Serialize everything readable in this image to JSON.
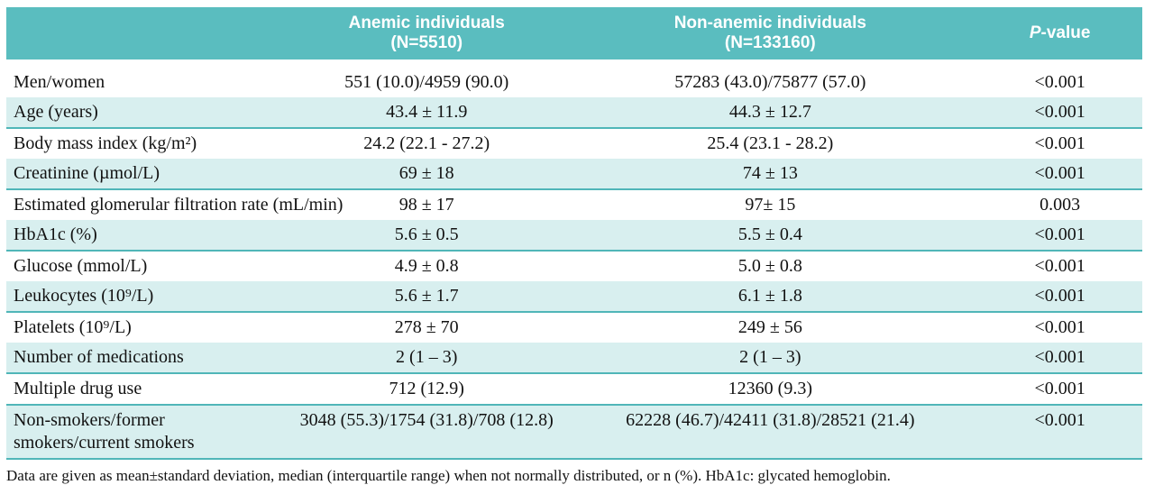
{
  "colors": {
    "header_bg": "#5abdbf",
    "row_shade": "#d8efef",
    "rule_line": "#50b6b8",
    "header_text": "#ffffff",
    "body_text": "#121212"
  },
  "table": {
    "header": {
      "col1": "",
      "anemic": "Anemic individuals\n(N=5510)",
      "non_anemic": "Non-anemic individuals\n(N=133160)",
      "p_italic": "P",
      "p_rest": "-value"
    },
    "rows": [
      {
        "label": "Men/women",
        "anemic": "551 (10.0)/4959 (90.0)",
        "non_anemic": "57283 (43.0)/75877 (57.0)",
        "p": "<0.001"
      },
      {
        "label": "Age (years)",
        "anemic": "43.4 ± 11.9",
        "non_anemic": "44.3 ± 12.7",
        "p": "<0.001"
      },
      {
        "label": "Body mass index (kg/m²)",
        "anemic": "24.2 (22.1 - 27.2)",
        "non_anemic": "25.4 (23.1 - 28.2)",
        "p": "<0.001"
      },
      {
        "label": "Creatinine (µmol/L)",
        "anemic": "69 ± 18",
        "non_anemic": "74 ± 13",
        "p": "<0.001"
      },
      {
        "label": "Estimated glomerular filtration rate (mL/min)",
        "anemic": "98 ± 17",
        "non_anemic": "97± 15",
        "p": "0.003"
      },
      {
        "label": "HbA1c (%)",
        "anemic": "5.6 ± 0.5",
        "non_anemic": "5.5 ± 0.4",
        "p": "<0.001"
      },
      {
        "label": "Glucose (mmol/L)",
        "anemic": "4.9 ± 0.8",
        "non_anemic": "5.0 ± 0.8",
        "p": "<0.001"
      },
      {
        "label": "Leukocytes (10⁹/L)",
        "anemic": "5.6 ± 1.7",
        "non_anemic": "6.1 ± 1.8",
        "p": "<0.001"
      },
      {
        "label": "Platelets (10⁹/L)",
        "anemic": "278 ± 70",
        "non_anemic": "249 ± 56",
        "p": "<0.001"
      },
      {
        "label": "Number of medications",
        "anemic": "2 (1 – 3)",
        "non_anemic": "2 (1 – 3)",
        "p": "<0.001"
      },
      {
        "label": "Multiple drug use",
        "anemic": "712 (12.9)",
        "non_anemic": "12360 (9.3)",
        "p": "<0.001"
      },
      {
        "label": "Non-smokers/former\nsmokers/current smokers",
        "anemic": "3048 (55.3)/1754 (31.8)/708 (12.8)",
        "non_anemic": "62228 (46.7)/42411 (31.8)/28521 (21.4)",
        "p": "<0.001"
      }
    ],
    "footnote": "Data are given as mean±standard deviation, median (interquartile range) when not normally distributed, or n (%). HbA1c: glycated hemoglobin."
  }
}
